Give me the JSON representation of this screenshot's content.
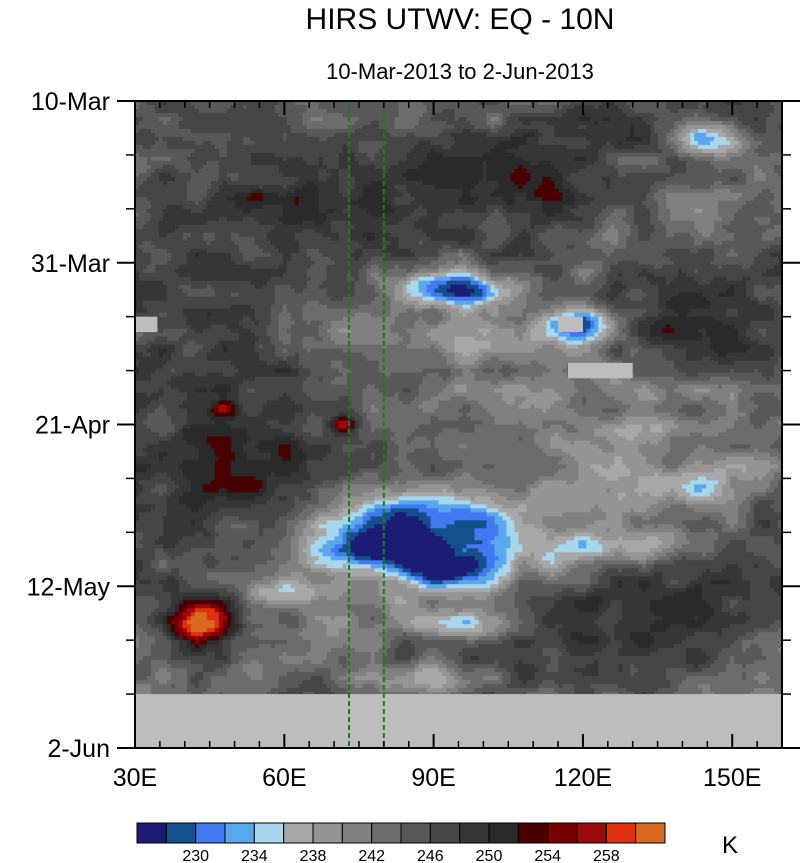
{
  "chart_data": {
    "type": "heatmap",
    "title": "HIRS UTWV: EQ - 10N",
    "subtitle": "10-Mar-2013 to 2-Jun-2013",
    "x_tick_labels": [
      "30E",
      "60E",
      "90E",
      "120E",
      "150E"
    ],
    "x_ticks": [
      30,
      60,
      90,
      120,
      150
    ],
    "xlim": [
      30,
      160
    ],
    "y_tick_labels": [
      "10-Mar",
      "31-Mar",
      "21-Apr",
      "12-May",
      "2-Jun"
    ],
    "y_ticks": [
      0,
      21,
      42,
      63,
      84
    ],
    "ylim": [
      0,
      84
    ],
    "colorbar": {
      "unit": "K",
      "tick_labels": [
        "230",
        "234",
        "238",
        "242",
        "246",
        "250",
        "254",
        "258"
      ],
      "levels": [
        228,
        230,
        232,
        234,
        236,
        238,
        240,
        242,
        244,
        246,
        248,
        250,
        252,
        254,
        256,
        258,
        260
      ],
      "colors": [
        "#1c1c74",
        "#14508c",
        "#4278f0",
        "#5aa8ec",
        "#a8d6ec",
        "#a8a8a8",
        "#949494",
        "#808080",
        "#6c6c6c",
        "#585858",
        "#464646",
        "#363636",
        "#2a2a2a",
        "#480000",
        "#780000",
        "#9c0a0a",
        "#e03010",
        "#d86a20"
      ]
    },
    "reference_lines": [
      {
        "x": 73,
        "color": "#1e7a1e",
        "style": "dashed"
      },
      {
        "x": 80,
        "color": "#1e7a1e",
        "style": "dashed"
      }
    ],
    "missing_regions": [
      {
        "x0": 30,
        "x1": 160,
        "y0": 77,
        "y1": 84
      },
      {
        "x0": 30,
        "x1": 34.5,
        "y0": 28,
        "y1": 30
      },
      {
        "x0": 117,
        "x1": 130,
        "y0": 34,
        "y1": 36
      },
      {
        "x0": 115,
        "x1": 120,
        "y0": 28,
        "y1": 30
      }
    ],
    "features": [
      {
        "x": 92,
        "y": 24,
        "sx": 8,
        "sy": 1.6,
        "amp": -13
      },
      {
        "x": 97,
        "y": 25,
        "sx": 3,
        "sy": 1.2,
        "amp": -8
      },
      {
        "x": 120,
        "y": 29,
        "sx": 6,
        "sy": 1.4,
        "amp": -12
      },
      {
        "x": 145,
        "y": 5,
        "sx": 5,
        "sy": 1.5,
        "amp": -10
      },
      {
        "x": 120,
        "y": 40,
        "sx": 22,
        "sy": 6,
        "amp": -5
      },
      {
        "x": 100,
        "y": 31,
        "sx": 25,
        "sy": 2,
        "amp": -4
      },
      {
        "x": 85,
        "y": 54,
        "sx": 14,
        "sy": 2.6,
        "amp": -12
      },
      {
        "x": 78,
        "y": 58,
        "sx": 10,
        "sy": 1.6,
        "amp": -11
      },
      {
        "x": 93,
        "y": 61,
        "sx": 8,
        "sy": 1.8,
        "amp": -13
      },
      {
        "x": 62,
        "y": 64,
        "sx": 7,
        "sy": 1.3,
        "amp": -9
      },
      {
        "x": 84,
        "y": 59,
        "sx": 16,
        "sy": 4,
        "amp": -5
      },
      {
        "x": 125,
        "y": 58,
        "sx": 12,
        "sy": 1.5,
        "amp": -7
      },
      {
        "x": 115,
        "y": 55,
        "sx": 20,
        "sy": 5,
        "amp": -3
      },
      {
        "x": 88,
        "y": 75,
        "sx": 9,
        "sy": 1.5,
        "amp": -9
      },
      {
        "x": 95,
        "y": 68,
        "sx": 10,
        "sy": 1.2,
        "amp": -8
      },
      {
        "x": 140,
        "y": 50,
        "sx": 8,
        "sy": 1.5,
        "amp": -7
      },
      {
        "x": 44,
        "y": 68,
        "sx": 5,
        "sy": 2.2,
        "amp": 16
      },
      {
        "x": 60,
        "y": 12,
        "sx": 20,
        "sy": 6,
        "amp": 6
      },
      {
        "x": 55,
        "y": 40,
        "sx": 15,
        "sy": 6,
        "amp": 6
      },
      {
        "x": 45,
        "y": 50,
        "sx": 14,
        "sy": 5,
        "amp": 5
      },
      {
        "x": 140,
        "y": 28,
        "sx": 12,
        "sy": 5,
        "amp": 6
      },
      {
        "x": 72,
        "y": 42,
        "sx": 2,
        "sy": 0.7,
        "amp": 10
      },
      {
        "x": 48,
        "y": 40,
        "sx": 2,
        "sy": 0.7,
        "amp": 9
      },
      {
        "x": 130,
        "y": 68,
        "sx": 15,
        "sy": 5,
        "amp": 5
      },
      {
        "x": 110,
        "y": 12,
        "sx": 14,
        "sy": 5,
        "amp": 4
      }
    ]
  }
}
